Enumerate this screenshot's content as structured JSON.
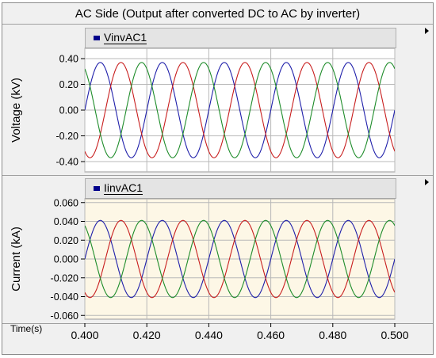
{
  "window": {
    "title": "AC Side (Output after converted DC to AC by inverter)"
  },
  "colors": {
    "phase_a": "#1f1faa",
    "phase_b": "#c81e1e",
    "phase_c": "#1e8c2a",
    "legend_swatch": "#00008b",
    "top_plot_bg": "#ffffff",
    "bottom_plot_bg": "#fdf7e6",
    "grid": "#b8b8b8"
  },
  "chart_data": [
    {
      "type": "line",
      "legend": "VinvAC1",
      "ylabel": "Voltage (kV)",
      "ylim": [
        -0.48,
        0.48
      ],
      "yticks": [
        0.4,
        0.2,
        0.0,
        -0.2,
        -0.4
      ],
      "ytick_labels": [
        "0.40",
        "0.20",
        "0.00",
        "-0.20",
        "-0.40"
      ],
      "xlim": [
        0.4,
        0.5
      ],
      "grid": true,
      "waveform": "three-phase sine",
      "frequency_hz": 50,
      "series": [
        {
          "color": "#1f1faa",
          "amplitude": 0.37,
          "phase_deg": 0
        },
        {
          "color": "#c81e1e",
          "amplitude": 0.37,
          "phase_deg": -120
        },
        {
          "color": "#1e8c2a",
          "amplitude": 0.37,
          "phase_deg": 120
        }
      ]
    },
    {
      "type": "line",
      "legend": "IinvAC1",
      "ylabel": "Current (kA)",
      "ylim": [
        -0.064,
        0.064
      ],
      "yticks": [
        0.06,
        0.04,
        0.02,
        0.0,
        -0.02,
        -0.04,
        -0.06
      ],
      "ytick_labels": [
        "0.060",
        "0.040",
        "0.020",
        "0.000",
        "-0.020",
        "-0.040",
        "-0.060"
      ],
      "xlabel": "Time(s)",
      "xlim": [
        0.4,
        0.5
      ],
      "xticks": [
        0.4,
        0.42,
        0.44,
        0.46,
        0.48,
        0.5
      ],
      "xtick_labels": [
        "0.400",
        "0.420",
        "0.440",
        "0.460",
        "0.480",
        "0.500"
      ],
      "grid": true,
      "waveform": "three-phase sine",
      "frequency_hz": 50,
      "series": [
        {
          "color": "#1f1faa",
          "amplitude": 0.041,
          "phase_deg": 0
        },
        {
          "color": "#c81e1e",
          "amplitude": 0.041,
          "phase_deg": -120
        },
        {
          "color": "#1e8c2a",
          "amplitude": 0.041,
          "phase_deg": 120
        }
      ]
    }
  ]
}
